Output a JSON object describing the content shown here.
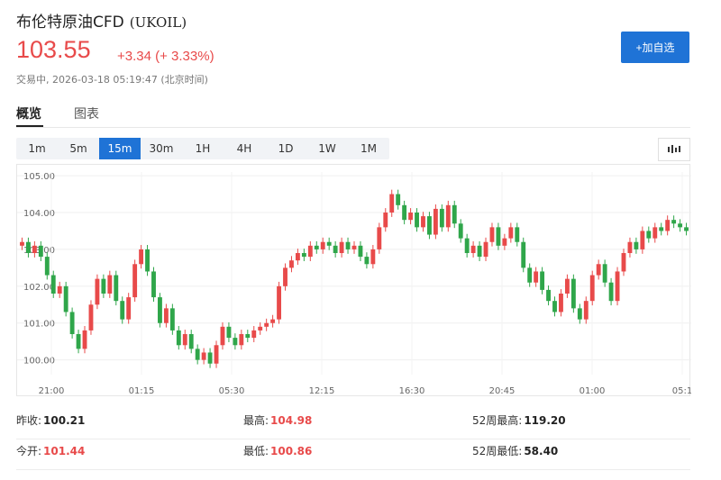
{
  "header": {
    "name": "布伦特原油CFD",
    "code": "(UKOIL)",
    "price": "103.55",
    "change": "+3.34 (+ 3.33%)",
    "status": "交易中,  2026-03-18 05:19:47 (北京时间)",
    "add_button": "+加自选"
  },
  "tabs": [
    "概览",
    "图表"
  ],
  "intervals": [
    "1m",
    "5m",
    "15m",
    "30m",
    "1H",
    "4H",
    "1D",
    "1W",
    "1M"
  ],
  "active_interval": "15m",
  "chart_data": {
    "type": "candlestick",
    "y_ticks": [
      "105.00",
      "104.00",
      "103.00",
      "102.00",
      "101.00",
      "100.00"
    ],
    "x_ticks": [
      "21:00",
      "01:15",
      "05:30",
      "12:15",
      "16:30",
      "20:45",
      "01:00",
      "05:1"
    ],
    "ylim": [
      99.6,
      105.1
    ],
    "colors": {
      "up": "#e84a4a",
      "down": "#2fa64a"
    },
    "closes": [
      103.2,
      102.9,
      103.1,
      102.8,
      102.3,
      101.8,
      102.0,
      101.3,
      100.7,
      100.3,
      100.8,
      101.5,
      102.2,
      101.8,
      102.3,
      101.6,
      101.1,
      101.7,
      102.6,
      103.0,
      102.4,
      101.7,
      101.0,
      101.4,
      100.8,
      100.4,
      100.7,
      100.3,
      100.0,
      100.2,
      99.9,
      100.4,
      100.9,
      100.6,
      100.4,
      100.7,
      100.6,
      100.8,
      100.9,
      101.0,
      101.1,
      102.0,
      102.5,
      102.7,
      102.9,
      102.8,
      103.1,
      103.0,
      103.2,
      103.1,
      102.9,
      103.2,
      103.0,
      103.1,
      102.8,
      102.6,
      103.0,
      103.6,
      104.0,
      104.5,
      104.2,
      103.8,
      104.0,
      103.6,
      103.9,
      103.4,
      104.1,
      103.6,
      104.2,
      103.7,
      103.3,
      102.9,
      103.1,
      102.8,
      103.2,
      103.6,
      103.1,
      103.3,
      103.6,
      103.2,
      102.5,
      102.1,
      102.4,
      101.9,
      101.6,
      101.3,
      101.8,
      102.2,
      101.4,
      101.1,
      101.6,
      102.3,
      102.6,
      102.1,
      101.6,
      102.4,
      102.9,
      103.2,
      103.0,
      103.5,
      103.3,
      103.6,
      103.5,
      103.8,
      103.7,
      103.6,
      103.5
    ]
  },
  "stats": {
    "prev_close_label": "昨收:",
    "prev_close": "100.21",
    "high_label": "最高:",
    "high": "104.98",
    "wk52_high_label": "52周最高:",
    "wk52_high": "119.20",
    "open_label": "今开:",
    "open": "101.44",
    "low_label": "最低:",
    "low": "100.86",
    "wk52_low_label": "52周最低:",
    "wk52_low": "58.40"
  }
}
